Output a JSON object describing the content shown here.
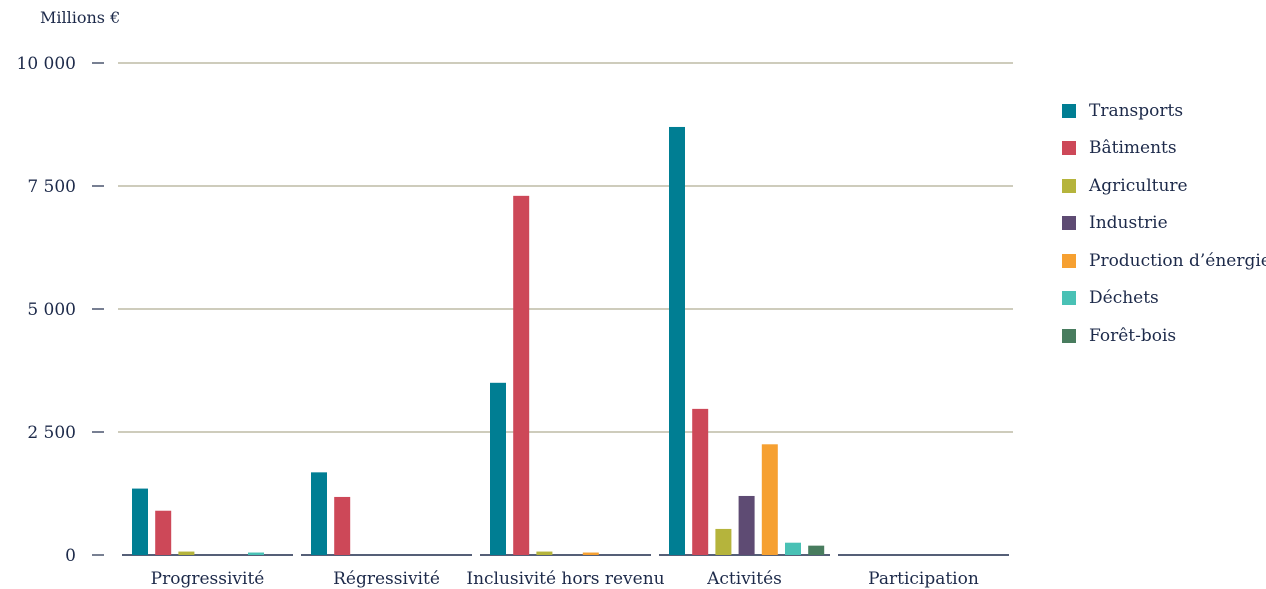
{
  "chart_data": {
    "type": "bar",
    "unit_label": "Millions €",
    "categories": [
      "Progressivité",
      "Régressivité",
      "Inclusivité hors revenu",
      "Activités",
      "Participation"
    ],
    "series": [
      {
        "name": "Transports",
        "color": "#007e93",
        "values": [
          1350,
          1680,
          3500,
          8700,
          0
        ]
      },
      {
        "name": "Bâtiments",
        "color": "#cd4858",
        "values": [
          900,
          1180,
          7300,
          2970,
          0
        ]
      },
      {
        "name": "Agriculture",
        "color": "#b5b43c",
        "values": [
          70,
          0,
          70,
          530,
          0
        ]
      },
      {
        "name": "Industrie",
        "color": "#5e4b73",
        "values": [
          0,
          0,
          0,
          1200,
          0
        ]
      },
      {
        "name": "Production d’énergie",
        "color": "#f6a031",
        "values": [
          0,
          0,
          50,
          2250,
          0
        ]
      },
      {
        "name": "Déchets",
        "color": "#49c1b5",
        "values": [
          50,
          0,
          0,
          250,
          0
        ]
      },
      {
        "name": "Forêt-bois",
        "color": "#487c5e",
        "values": [
          0,
          0,
          0,
          190,
          0
        ]
      }
    ],
    "ylim": [
      0,
      10000
    ],
    "yticks": [
      0,
      2500,
      5000,
      7500,
      10000
    ],
    "ytick_labels": [
      "0",
      "2 500",
      "5 000",
      "7 500",
      "10 000"
    ],
    "grid": true,
    "legend_position": "right"
  }
}
